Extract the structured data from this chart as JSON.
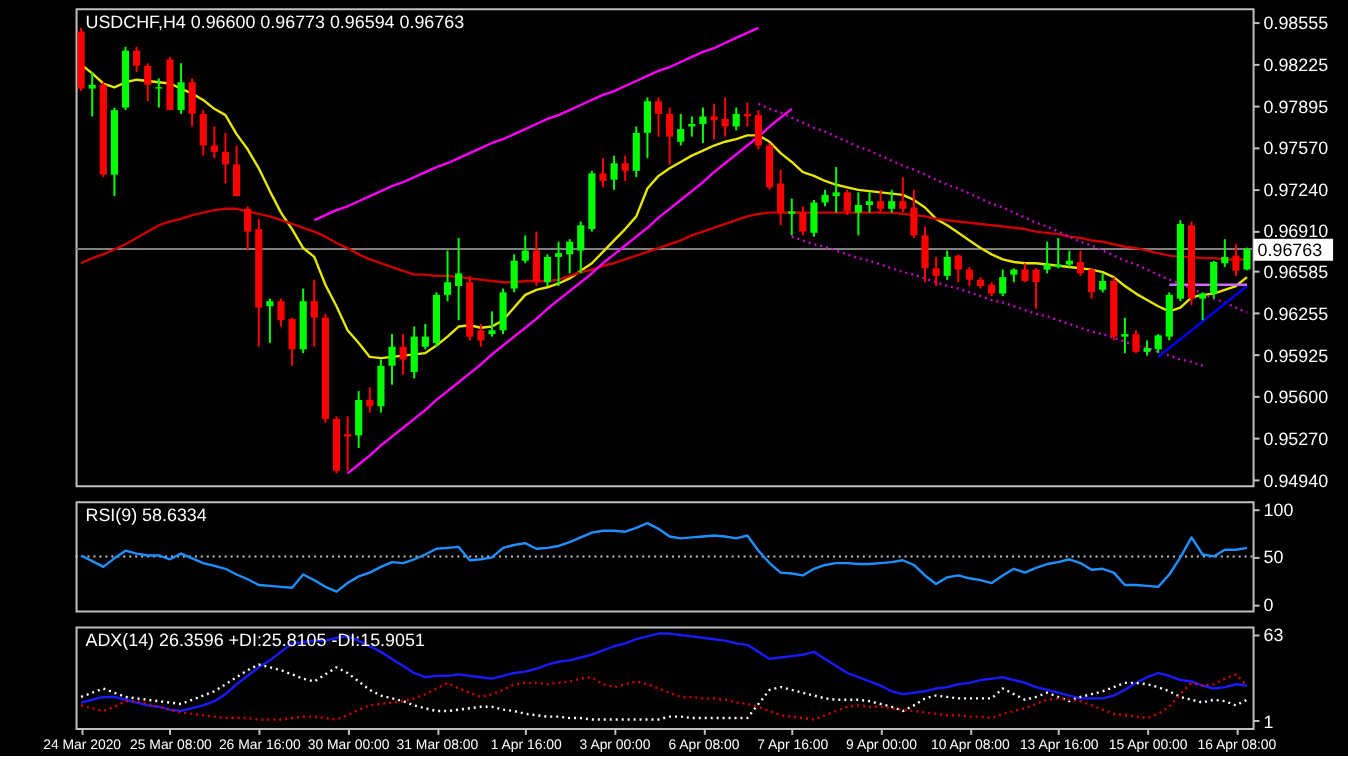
{
  "chart_data": [
    {
      "type": "candlestick",
      "title": "USDCHF,H4 0.96600 0.96773 0.96594 0.96763",
      "ohlc": [
        [
          0.9848,
          0.9851,
          0.9801,
          0.9803
        ],
        [
          0.9803,
          0.9816,
          0.9781,
          0.9806
        ],
        [
          0.9806,
          0.9808,
          0.9733,
          0.9735
        ],
        [
          0.9735,
          0.9788,
          0.9718,
          0.9786
        ],
        [
          0.9788,
          0.9836,
          0.9786,
          0.9833
        ],
        [
          0.9833,
          0.9836,
          0.9816,
          0.9821
        ],
        [
          0.9821,
          0.9823,
          0.9793,
          0.9806
        ],
        [
          0.9803,
          0.9811,
          0.9788,
          0.9804
        ],
        [
          0.9826,
          0.9828,
          0.9786,
          0.9786
        ],
        [
          0.9786,
          0.9823,
          0.9783,
          0.9808
        ],
        [
          0.9808,
          0.9811,
          0.9773,
          0.9783
        ],
        [
          0.9783,
          0.9786,
          0.975,
          0.9758
        ],
        [
          0.9758,
          0.9773,
          0.9748,
          0.9753
        ],
        [
          0.9753,
          0.9768,
          0.9728,
          0.9743
        ],
        [
          0.9743,
          0.9758,
          0.9718,
          0.9718
        ],
        [
          0.9708,
          0.971,
          0.9675,
          0.969
        ],
        [
          0.9692,
          0.97,
          0.9599,
          0.963
        ],
        [
          0.9631,
          0.9637,
          0.9602,
          0.9635
        ],
        [
          0.9635,
          0.9637,
          0.9615,
          0.962
        ],
        [
          0.9621,
          0.9622,
          0.9584,
          0.9597
        ],
        [
          0.9597,
          0.9645,
          0.9594,
          0.9635
        ],
        [
          0.9635,
          0.9652,
          0.9599,
          0.9622
        ],
        [
          0.9622,
          0.9625,
          0.9539,
          0.9542
        ],
        [
          0.9542,
          0.9544,
          0.9499,
          0.9501
        ],
        [
          0.953,
          0.9544,
          0.9501,
          0.9528
        ],
        [
          0.9529,
          0.9564,
          0.9519,
          0.9557
        ],
        [
          0.9557,
          0.9567,
          0.9547,
          0.9552
        ],
        [
          0.9552,
          0.9589,
          0.9547,
          0.9584
        ],
        [
          0.9584,
          0.9609,
          0.9569,
          0.9599
        ],
        [
          0.9599,
          0.9609,
          0.9577,
          0.9589
        ],
        [
          0.9579,
          0.9615,
          0.9574,
          0.9607
        ],
        [
          0.9599,
          0.9617,
          0.9597,
          0.9607
        ],
        [
          0.9602,
          0.9642,
          0.9599,
          0.964
        ],
        [
          0.964,
          0.9675,
          0.9635,
          0.965
        ],
        [
          0.9647,
          0.9685,
          0.962,
          0.9657
        ],
        [
          0.965,
          0.9655,
          0.9604,
          0.9607
        ],
        [
          0.9612,
          0.9617,
          0.9599,
          0.9604
        ],
        [
          0.9609,
          0.9627,
          0.9607,
          0.9612
        ],
        [
          0.9612,
          0.9645,
          0.9609,
          0.9642
        ],
        [
          0.9645,
          0.9672,
          0.9642,
          0.9667
        ],
        [
          0.9667,
          0.9687,
          0.9665,
          0.9675
        ],
        [
          0.9675,
          0.969,
          0.9647,
          0.965
        ],
        [
          0.965,
          0.9672,
          0.9647,
          0.967
        ],
        [
          0.967,
          0.9682,
          0.9647,
          0.9673
        ],
        [
          0.9672,
          0.9684,
          0.9657,
          0.9682
        ],
        [
          0.9675,
          0.9698,
          0.9657,
          0.9695
        ],
        [
          0.9692,
          0.9738,
          0.969,
          0.9736
        ],
        [
          0.9736,
          0.9748,
          0.9725,
          0.973
        ],
        [
          0.9731,
          0.975,
          0.9723,
          0.9744
        ],
        [
          0.9744,
          0.975,
          0.973,
          0.9738
        ],
        [
          0.9738,
          0.9773,
          0.9733,
          0.9768
        ],
        [
          0.9768,
          0.9796,
          0.9748,
          0.9793
        ],
        [
          0.9793,
          0.9796,
          0.9765,
          0.9783
        ],
        [
          0.9783,
          0.9788,
          0.9743,
          0.9765
        ],
        [
          0.9761,
          0.9783,
          0.9758,
          0.9771
        ],
        [
          0.9773,
          0.9781,
          0.9765,
          0.9775
        ],
        [
          0.9775,
          0.9788,
          0.976,
          0.9781
        ],
        [
          0.9781,
          0.9791,
          0.9763,
          0.9778
        ],
        [
          0.9779,
          0.9796,
          0.9765,
          0.9773
        ],
        [
          0.9773,
          0.9788,
          0.977,
          0.9783
        ],
        [
          0.9783,
          0.9792,
          0.9773,
          0.9781
        ],
        [
          0.9782,
          0.9786,
          0.9755,
          0.9758
        ],
        [
          0.9758,
          0.976,
          0.9723,
          0.9725
        ],
        [
          0.9728,
          0.9739,
          0.9695,
          0.9705
        ],
        [
          0.9704,
          0.9716,
          0.9687,
          0.9706
        ],
        [
          0.9705,
          0.971,
          0.9687,
          0.969
        ],
        [
          0.9689,
          0.9715,
          0.9686,
          0.9713
        ],
        [
          0.9713,
          0.9723,
          0.971,
          0.9719
        ],
        [
          0.9718,
          0.9741,
          0.9705,
          0.9721
        ],
        [
          0.9721,
          0.9723,
          0.9703,
          0.9706
        ],
        [
          0.9705,
          0.9721,
          0.9687,
          0.9711
        ],
        [
          0.9711,
          0.9721,
          0.9705,
          0.9714
        ],
        [
          0.9714,
          0.9723,
          0.9705,
          0.9708
        ],
        [
          0.9708,
          0.9723,
          0.9705,
          0.9714
        ],
        [
          0.9714,
          0.9733,
          0.9705,
          0.9708
        ],
        [
          0.9709,
          0.9723,
          0.9685,
          0.9687
        ],
        [
          0.9687,
          0.9694,
          0.965,
          0.9661
        ],
        [
          0.9661,
          0.967,
          0.9647,
          0.9655
        ],
        [
          0.9655,
          0.9675,
          0.9652,
          0.967
        ],
        [
          0.9671,
          0.9672,
          0.965,
          0.966
        ],
        [
          0.966,
          0.9662,
          0.9647,
          0.9652
        ],
        [
          0.9652,
          0.9654,
          0.9645,
          0.9647
        ],
        [
          0.9648,
          0.965,
          0.9639,
          0.9641
        ],
        [
          0.9641,
          0.966,
          0.9639,
          0.9654
        ],
        [
          0.9656,
          0.9661,
          0.965,
          0.966
        ],
        [
          0.966,
          0.9665,
          0.965,
          0.9651
        ],
        [
          0.966,
          0.9661,
          0.9629,
          0.965
        ],
        [
          0.966,
          0.9682,
          0.9657,
          0.9664
        ],
        [
          0.9662,
          0.9685,
          0.9661,
          0.9664
        ],
        [
          0.9664,
          0.9675,
          0.9662,
          0.9667
        ],
        [
          0.9666,
          0.9675,
          0.9655,
          0.9657
        ],
        [
          0.966,
          0.9661,
          0.9637,
          0.9642
        ],
        [
          0.9644,
          0.9657,
          0.9642,
          0.9651
        ],
        [
          0.9651,
          0.9654,
          0.9604,
          0.9607
        ],
        [
          0.9607,
          0.9622,
          0.9594,
          0.9609
        ],
        [
          0.9609,
          0.9612,
          0.9594,
          0.9595
        ],
        [
          0.9595,
          0.9604,
          0.9592,
          0.9598
        ],
        [
          0.9597,
          0.9609,
          0.9594,
          0.9608
        ],
        [
          0.9607,
          0.9642,
          0.9604,
          0.964
        ],
        [
          0.9637,
          0.9699,
          0.9635,
          0.9696
        ],
        [
          0.9695,
          0.9698,
          0.9632,
          0.9637
        ],
        [
          0.9637,
          0.9642,
          0.962,
          0.9641
        ],
        [
          0.9641,
          0.9667,
          0.9637,
          0.9666
        ],
        [
          0.9665,
          0.9684,
          0.9662,
          0.967
        ],
        [
          0.9671,
          0.968,
          0.9655,
          0.9659
        ],
        [
          0.966,
          0.96773,
          0.96594,
          0.96763
        ]
      ],
      "colors": [
        "#ff0000",
        "#00ff00",
        "#ff0000",
        "#00ff00",
        "#00ff00",
        "#ff0000",
        "#ff0000",
        "#00ff00",
        "#ff0000",
        "#00ff00",
        "#ff0000",
        "#ff0000",
        "#ff0000",
        "#ff0000",
        "#ff0000",
        "#ff0000",
        "#ff0000",
        "#00ff00",
        "#ff0000",
        "#ff0000",
        "#00ff00",
        "#ff0000",
        "#ff0000",
        "#ff0000",
        "#ff0000",
        "#00ff00",
        "#ff0000",
        "#00ff00",
        "#00ff00",
        "#ff0000",
        "#00ff00",
        "#00ff00",
        "#00ff00",
        "#00ff00",
        "#00ff00",
        "#ff0000",
        "#ff0000",
        "#00ff00",
        "#00ff00",
        "#00ff00",
        "#00ff00",
        "#ff0000",
        "#00ff00",
        "#00ff00",
        "#00ff00",
        "#00ff00",
        "#00ff00",
        "#ff0000",
        "#00ff00",
        "#ff0000",
        "#00ff00",
        "#00ff00",
        "#ff0000",
        "#ff0000",
        "#00ff00",
        "#00ff00",
        "#00ff00",
        "#ff0000",
        "#ff0000",
        "#00ff00",
        "#ff0000",
        "#ff0000",
        "#ff0000",
        "#ff0000",
        "#00ff00",
        "#ff0000",
        "#00ff00",
        "#00ff00",
        "#00ff00",
        "#ff0000",
        "#00ff00",
        "#00ff00",
        "#ff0000",
        "#00ff00",
        "#ff0000",
        "#ff0000",
        "#ff0000",
        "#ff0000",
        "#00ff00",
        "#ff0000",
        "#ff0000",
        "#ff0000",
        "#ff0000",
        "#00ff00",
        "#00ff00",
        "#ff0000",
        "#ff0000",
        "#00ff00",
        "#00ff00",
        "#00ff00",
        "#ff0000",
        "#ff0000",
        "#00ff00",
        "#ff0000",
        "#00ff00",
        "#ff0000",
        "#00ff00",
        "#00ff00",
        "#00ff00",
        "#00ff00",
        "#ff0000",
        "#00ff00",
        "#00ff00",
        "#00ff00",
        "#ff0000",
        "#00ff00"
      ],
      "series": [
        {
          "type": "line",
          "color": "#e6e600",
          "values": [
            0.9822,
            0.9815,
            0.9807,
            0.9804,
            0.9808,
            0.981,
            0.9809,
            0.9808,
            0.9807,
            0.9803,
            0.9799,
            0.9794,
            0.9787,
            0.9782,
            0.9767,
            0.9755,
            0.974,
            0.9722,
            0.9705,
            0.9692,
            0.9677,
            0.967,
            0.9648,
            0.9631,
            0.9612,
            0.9602,
            0.9591,
            0.959,
            0.9591,
            0.9592,
            0.9593,
            0.9594,
            0.96,
            0.9607,
            0.9615,
            0.9616,
            0.9614,
            0.9615,
            0.962,
            0.963,
            0.964,
            0.9644,
            0.9646,
            0.9649,
            0.9653,
            0.9659,
            0.9665,
            0.9674,
            0.9683,
            0.9692,
            0.9702,
            0.9724,
            0.9734,
            0.974,
            0.9745,
            0.975,
            0.9754,
            0.9758,
            0.9761,
            0.9763,
            0.9766,
            0.9766,
            0.9761,
            0.9752,
            0.9745,
            0.9737,
            0.9734,
            0.973,
            0.9727,
            0.9725,
            0.9723,
            0.9722,
            0.9721,
            0.972,
            0.9719,
            0.9715,
            0.9709,
            0.97,
            0.9695,
            0.9689,
            0.9683,
            0.9677,
            0.9672,
            0.9668,
            0.9666,
            0.9665,
            0.9665,
            0.9664,
            0.9663,
            0.9662,
            0.9661,
            0.966,
            0.9658,
            0.9654,
            0.9647,
            0.9641,
            0.9636,
            0.9631,
            0.9627,
            0.963,
            0.9638,
            0.964,
            0.9641,
            0.9644,
            0.9647,
            0.9654
          ]
        },
        {
          "type": "line",
          "color": "#cc0000",
          "values": [
            0.9665,
            0.9669,
            0.9672,
            0.9676,
            0.968,
            0.9685,
            0.969,
            0.9695,
            0.9698,
            0.97,
            0.9703,
            0.9705,
            0.9707,
            0.9708,
            0.9708,
            0.9706,
            0.9704,
            0.9702,
            0.9699,
            0.9696,
            0.9693,
            0.969,
            0.9686,
            0.9681,
            0.9677,
            0.9672,
            0.9668,
            0.9665,
            0.9662,
            0.9659,
            0.9656,
            0.9656,
            0.9655,
            0.9655,
            0.9654,
            0.9653,
            0.9652,
            0.9651,
            0.965,
            0.965,
            0.9651,
            0.9651,
            0.9651,
            0.9652,
            0.9655,
            0.9658,
            0.966,
            0.9663,
            0.9665,
            0.9668,
            0.9671,
            0.9674,
            0.9677,
            0.968,
            0.9683,
            0.9687,
            0.969,
            0.9693,
            0.9696,
            0.9699,
            0.9702,
            0.9704,
            0.9705,
            0.9705,
            0.9705,
            0.9705,
            0.9705,
            0.9705,
            0.9705,
            0.9705,
            0.9705,
            0.9705,
            0.9705,
            0.9705,
            0.9704,
            0.9703,
            0.9702,
            0.97,
            0.9699,
            0.9698,
            0.9697,
            0.9696,
            0.9695,
            0.9694,
            0.9693,
            0.9692,
            0.969,
            0.9689,
            0.9688,
            0.9686,
            0.9685,
            0.9683,
            0.9682,
            0.968,
            0.9678,
            0.9677,
            0.9675,
            0.9673,
            0.9671,
            0.967,
            0.967,
            0.9669,
            0.9669,
            0.9668,
            0.9668,
            0.9668
          ]
        },
        {
          "type": "line",
          "color": "#ff00ff",
          "values": [
            null,
            null,
            null,
            null,
            null,
            null,
            null,
            null,
            null,
            null,
            null,
            null,
            null,
            null,
            null,
            null,
            null,
            null,
            null,
            null,
            null,
            0.9699,
            0.9703,
            0.9707,
            0.971,
            0.9714,
            0.9718,
            0.9722,
            0.9726,
            0.9729,
            0.9733,
            0.9737,
            0.9741,
            0.9744,
            0.9748,
            0.9752,
            0.9756,
            0.976,
            0.9763,
            0.9767,
            0.9771,
            0.9775,
            0.9779,
            0.9782,
            0.9786,
            0.979,
            0.9794,
            0.9798,
            0.9801,
            0.9805,
            0.9809,
            0.9813,
            0.9817,
            0.982,
            0.9824,
            0.9828,
            0.9832,
            0.9835,
            0.9839,
            0.9843,
            0.9847,
            0.9851,
            null,
            null,
            null,
            null,
            null,
            null,
            null,
            null,
            null,
            null,
            null,
            null,
            null,
            null,
            null,
            null,
            null,
            null,
            null,
            null,
            null,
            null,
            null,
            null,
            null,
            null,
            null,
            null,
            null,
            null,
            null,
            null,
            null,
            null,
            null,
            null,
            null,
            null,
            null,
            null,
            null,
            null,
            null,
            null
          ]
        },
        {
          "type": "line",
          "color": "#ff00ff",
          "values": [
            null,
            null,
            null,
            null,
            null,
            null,
            null,
            null,
            null,
            null,
            null,
            null,
            null,
            null,
            null,
            null,
            null,
            null,
            null,
            null,
            null,
            null,
            null,
            null,
            0.9499,
            0.9506,
            0.9513,
            0.9521,
            0.9528,
            0.9535,
            0.9542,
            0.9549,
            0.9557,
            0.9564,
            0.9571,
            0.9578,
            0.9585,
            0.9593,
            0.96,
            0.9607,
            0.9614,
            0.9621,
            0.9629,
            0.9636,
            0.9643,
            0.965,
            0.9657,
            0.9665,
            0.9672,
            0.9679,
            0.9686,
            0.9693,
            0.9701,
            0.9708,
            0.9715,
            0.9722,
            0.9729,
            0.9737,
            0.9744,
            0.9751,
            0.9758,
            0.9765,
            0.9773,
            0.978,
            0.9787,
            null,
            null,
            null,
            null,
            null,
            null,
            null,
            null,
            null,
            null,
            null,
            null,
            null,
            null,
            null,
            null,
            null,
            null,
            null,
            null,
            null,
            null,
            null,
            null,
            null,
            null,
            null,
            null,
            null,
            null,
            null,
            null,
            null,
            null,
            null,
            null,
            null,
            null,
            null,
            null,
            null
          ]
        },
        {
          "type": "line",
          "color": "#cc00cc",
          "line_style": "dotted",
          "values": [
            null,
            null,
            null,
            null,
            null,
            null,
            null,
            null,
            null,
            null,
            null,
            null,
            null,
            null,
            null,
            null,
            null,
            null,
            null,
            null,
            null,
            null,
            null,
            null,
            null,
            null,
            null,
            null,
            null,
            null,
            null,
            null,
            null,
            null,
            null,
            null,
            null,
            null,
            null,
            null,
            null,
            null,
            null,
            null,
            null,
            null,
            null,
            null,
            null,
            null,
            null,
            null,
            null,
            null,
            null,
            null,
            null,
            null,
            null,
            null,
            null,
            0.9791,
            0.9787,
            0.9784,
            0.978,
            0.9776,
            0.9772,
            0.9769,
            0.9765,
            0.9761,
            0.9757,
            0.9754,
            0.975,
            0.9746,
            0.9742,
            0.9739,
            0.9735,
            0.9731,
            0.9727,
            0.9724,
            0.972,
            0.9716,
            0.9712,
            0.9709,
            0.9705,
            0.9701,
            0.9697,
            0.9694,
            0.969,
            0.9686,
            0.9682,
            0.9679,
            0.9675,
            0.9671,
            0.9667,
            0.9664,
            0.966,
            0.9656,
            0.9652,
            0.9649,
            0.9645,
            0.9641,
            0.9637,
            0.9634,
            0.963,
            0.9626
          ]
        },
        {
          "type": "line",
          "color": "#cc00cc",
          "line_style": "dotted",
          "values": [
            null,
            null,
            null,
            null,
            null,
            null,
            null,
            null,
            null,
            null,
            null,
            null,
            null,
            null,
            null,
            null,
            null,
            null,
            null,
            null,
            null,
            null,
            null,
            null,
            null,
            null,
            null,
            null,
            null,
            null,
            null,
            null,
            null,
            null,
            null,
            null,
            null,
            null,
            null,
            null,
            null,
            null,
            null,
            null,
            null,
            null,
            null,
            null,
            null,
            null,
            null,
            null,
            null,
            null,
            null,
            null,
            null,
            null,
            null,
            null,
            null,
            null,
            null,
            null,
            0.9686,
            0.9683,
            0.968,
            0.9678,
            0.9675,
            0.9672,
            0.9669,
            0.9667,
            0.9664,
            0.9661,
            0.9658,
            0.9656,
            0.9653,
            0.965,
            0.9647,
            0.9645,
            0.9642,
            0.9639,
            0.9636,
            0.9634,
            0.9631,
            0.9628,
            0.9625,
            0.9623,
            0.962,
            0.9617,
            0.9614,
            0.9611,
            0.9609,
            0.9606,
            0.9603,
            0.96,
            0.9598,
            0.9595,
            0.9592,
            0.9589,
            0.9587,
            0.9584,
            null,
            null,
            null,
            null
          ]
        },
        {
          "type": "line",
          "color": "#0000ff",
          "values": [
            null,
            null,
            null,
            null,
            null,
            null,
            null,
            null,
            null,
            null,
            null,
            null,
            null,
            null,
            null,
            null,
            null,
            null,
            null,
            null,
            null,
            null,
            null,
            null,
            null,
            null,
            null,
            null,
            null,
            null,
            null,
            null,
            null,
            null,
            null,
            null,
            null,
            null,
            null,
            null,
            null,
            null,
            null,
            null,
            null,
            null,
            null,
            null,
            null,
            null,
            null,
            null,
            null,
            null,
            null,
            null,
            null,
            null,
            null,
            null,
            null,
            null,
            null,
            null,
            null,
            null,
            null,
            null,
            null,
            null,
            null,
            null,
            null,
            null,
            null,
            null,
            null,
            null,
            null,
            null,
            null,
            null,
            null,
            null,
            null,
            null,
            null,
            null,
            null,
            null,
            null,
            null,
            null,
            null,
            null,
            null,
            null,
            0.9591,
            0.9598,
            0.9605,
            0.9612,
            0.9619,
            0.9626,
            0.9633,
            0.964,
            0.9647
          ]
        },
        {
          "type": "line",
          "color": "#cc66ff",
          "values": [
            null,
            null,
            null,
            null,
            null,
            null,
            null,
            null,
            null,
            null,
            null,
            null,
            null,
            null,
            null,
            null,
            null,
            null,
            null,
            null,
            null,
            null,
            null,
            null,
            null,
            null,
            null,
            null,
            null,
            null,
            null,
            null,
            null,
            null,
            null,
            null,
            null,
            null,
            null,
            null,
            null,
            null,
            null,
            null,
            null,
            null,
            null,
            null,
            null,
            null,
            null,
            null,
            null,
            null,
            null,
            null,
            null,
            null,
            null,
            null,
            null,
            null,
            null,
            null,
            null,
            null,
            null,
            null,
            null,
            null,
            null,
            null,
            null,
            null,
            null,
            null,
            null,
            null,
            null,
            null,
            null,
            null,
            null,
            null,
            null,
            null,
            null,
            null,
            null,
            null,
            null,
            null,
            null,
            null,
            null,
            null,
            null,
            null,
            0.9648,
            0.9648,
            0.9648,
            0.9648,
            0.9648,
            0.9648,
            0.9648,
            0.9648
          ]
        }
      ],
      "ref_lines": [
        {
          "axis": "y",
          "value": 0.96763,
          "label": "0.96763",
          "color": "#808080"
        }
      ],
      "ylim": [
        0.94895,
        0.98665
      ],
      "yticks": [
        {
          "value": 0.98555,
          "label": "0.98555"
        },
        {
          "value": 0.98225,
          "label": "0.98225"
        },
        {
          "value": 0.97895,
          "label": "0.97895"
        },
        {
          "value": 0.9757,
          "label": "0.97570"
        },
        {
          "value": 0.9724,
          "label": "0.97240"
        },
        {
          "value": 0.9691,
          "label": "0.96910"
        },
        {
          "value": 0.96585,
          "label": "0.96585"
        },
        {
          "value": 0.96255,
          "label": "0.96255"
        },
        {
          "value": 0.95925,
          "label": "0.95925"
        },
        {
          "value": 0.956,
          "label": "0.95600"
        },
        {
          "value": 0.9527,
          "label": "0.95270"
        },
        {
          "value": 0.9494,
          "label": "0.94940"
        }
      ],
      "tick_labels": "y",
      "grid": false
    },
    {
      "type": "line",
      "title": "RSI(9) 58.6334",
      "series": [
        {
          "color": "#1e90ff",
          "values": [
            51,
            45,
            39,
            48,
            56,
            53,
            51,
            51,
            47,
            53,
            48,
            43,
            40,
            37,
            31,
            26,
            20,
            19,
            18,
            17,
            31,
            25,
            18,
            13,
            22,
            29,
            33,
            39,
            44,
            43,
            47,
            52,
            58,
            59,
            60,
            46,
            47,
            49,
            59,
            62,
            64,
            58,
            59,
            61,
            65,
            70,
            75,
            77,
            77,
            76,
            80,
            85,
            79,
            71,
            69,
            70,
            71,
            72,
            71,
            69,
            72,
            56,
            43,
            33,
            32,
            30,
            37,
            41,
            43,
            43,
            42,
            42,
            43,
            44,
            46,
            41,
            30,
            21,
            28,
            30,
            27,
            25,
            22,
            30,
            37,
            33,
            38,
            42,
            44,
            47,
            43,
            36,
            37,
            33,
            20,
            20,
            19,
            18,
            31,
            49,
            70,
            52,
            50,
            57,
            57,
            59
          ]
        }
      ],
      "ref_lines": [
        {
          "axis": "y",
          "value": 50,
          "color": "#c0c0c0",
          "line_style": "dotted"
        }
      ],
      "ylim": [
        -7,
        108
      ],
      "yticks": [
        0,
        50,
        100
      ],
      "tick_labels": "y",
      "grid": false
    },
    {
      "type": "line",
      "title": "ADX(14) 26.3596 +DI:25.8105 -DI:15.9051",
      "categories": [
        "24 Mar 2020",
        null,
        null,
        null,
        null,
        null,
        null,
        null,
        "25 Mar 08:00",
        null,
        null,
        null,
        null,
        null,
        null,
        null,
        "26 Mar 16:00",
        null,
        null,
        null,
        null,
        null,
        null,
        null,
        "30 Mar 00:00",
        null,
        null,
        null,
        null,
        null,
        null,
        null,
        "31 Mar 08:00",
        null,
        null,
        null,
        null,
        null,
        null,
        null,
        "1 Apr 16:00",
        null,
        null,
        null,
        null,
        null,
        null,
        null,
        "3 Apr 00:00",
        null,
        null,
        null,
        null,
        null,
        null,
        null,
        "6 Apr 08:00",
        null,
        null,
        null,
        null,
        null,
        null,
        null,
        "7 Apr 16:00",
        null,
        null,
        null,
        null,
        null,
        null,
        null,
        "9 Apr 00:00",
        null,
        null,
        null,
        null,
        null,
        null,
        null,
        "10 Apr 08:00",
        null,
        null,
        null,
        null,
        null,
        null,
        null,
        "13 Apr 16:00",
        null,
        null,
        null,
        null,
        null,
        null,
        null,
        "15 Apr 00:00",
        null,
        null,
        null,
        null,
        null,
        null,
        null,
        "16 Apr 08:00",
        null
      ],
      "series": [
        {
          "color": "#1a1aff",
          "values": [
            14,
            16,
            18,
            18,
            16,
            14,
            12,
            11,
            9,
            8,
            10,
            12,
            15,
            20,
            27,
            33,
            39,
            44,
            50,
            56,
            57,
            58,
            58,
            60,
            61,
            58,
            54,
            50,
            45,
            40,
            35,
            32,
            33,
            33,
            34,
            33,
            32,
            31,
            33,
            35,
            36,
            38,
            41,
            43,
            44,
            46,
            48,
            51,
            54,
            56,
            59,
            61,
            63,
            63,
            62,
            61,
            60,
            59,
            58,
            56,
            55,
            50,
            45,
            46,
            47,
            48,
            50,
            45,
            40,
            35,
            32,
            29,
            26,
            22,
            20,
            21,
            22,
            24,
            25,
            27,
            28,
            30,
            31,
            32,
            30,
            28,
            25,
            23,
            21,
            19,
            17,
            17,
            17,
            19,
            23,
            28,
            32,
            35,
            33,
            30,
            29,
            26,
            24,
            25,
            27,
            26
          ]
        },
        {
          "color": "#ffffff",
          "line_style": "dotted",
          "values": [
            18,
            21,
            24,
            21,
            18,
            17,
            16,
            15,
            14,
            13,
            16,
            19,
            22,
            27,
            32,
            37,
            41,
            39,
            37,
            34,
            31,
            29,
            34,
            39,
            35,
            29,
            23,
            19,
            17,
            15,
            12,
            10,
            8,
            8,
            9,
            10,
            11,
            11,
            9,
            8,
            6,
            5,
            4,
            4,
            3,
            3,
            2,
            2,
            2,
            2,
            2,
            2,
            2,
            4,
            4,
            3,
            3,
            3,
            3,
            3,
            3,
            13,
            23,
            25,
            23,
            21,
            19,
            17,
            16,
            16,
            16,
            15,
            13,
            11,
            8,
            12,
            17,
            19,
            18,
            17,
            17,
            17,
            17,
            24,
            20,
            16,
            18,
            21,
            18,
            15,
            18,
            20,
            22,
            25,
            28,
            28,
            27,
            25,
            22,
            18,
            16,
            14,
            16,
            15,
            12,
            16
          ]
        },
        {
          "color": "#dd0000",
          "line_style": "dotted",
          "values": [
            12,
            10,
            8,
            11,
            15,
            15,
            13,
            11,
            9,
            7,
            6,
            5,
            4,
            3,
            3,
            3,
            2,
            2,
            2,
            3,
            4,
            4,
            3,
            2,
            5,
            9,
            12,
            13,
            14,
            15,
            17,
            20,
            24,
            28,
            24,
            21,
            18,
            20,
            23,
            27,
            28,
            28,
            27,
            28,
            29,
            31,
            32,
            27,
            25,
            27,
            29,
            27,
            24,
            21,
            18,
            18,
            17,
            17,
            16,
            14,
            13,
            11,
            8,
            5,
            4,
            3,
            2,
            5,
            8,
            11,
            12,
            11,
            11,
            10,
            9,
            8,
            7,
            6,
            5,
            5,
            4,
            4,
            3,
            6,
            8,
            10,
            13,
            16,
            17,
            16,
            15,
            12,
            9,
            6,
            5,
            4,
            3,
            6,
            11,
            20,
            28,
            26,
            27,
            31,
            34,
            26
          ]
        }
      ],
      "ylim": [
        -4,
        68
      ],
      "yticks": [
        1,
        63
      ],
      "grid": false
    }
  ]
}
